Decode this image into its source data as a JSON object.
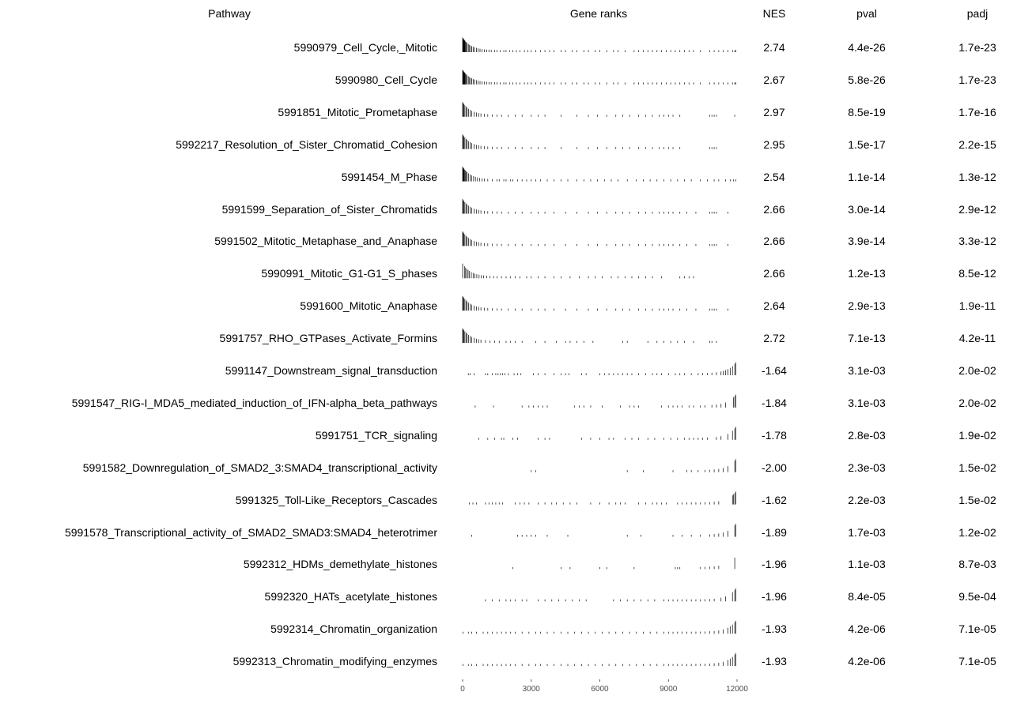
{
  "chart_data": {
    "type": "table",
    "columns": [
      "Pathway",
      "Gene ranks",
      "NES",
      "pval",
      "padj"
    ],
    "x_axis": {
      "ticks": [
        0,
        3000,
        6000,
        9000,
        12000
      ],
      "tick_labels": [
        "0",
        "3000",
        "6000",
        "9000",
        "12000"
      ],
      "range": [
        0,
        12000
      ]
    },
    "bar_color": "#000000",
    "rows": [
      {
        "pathway": "5990979_Cell_Cycle,_Mitotic",
        "nes": "2.74",
        "pval": "4.4e-26",
        "padj": "1.7e-23",
        "ranks": [
          0,
          20,
          40,
          60,
          80,
          100,
          130,
          160,
          200,
          250,
          300,
          350,
          400,
          460,
          520,
          600,
          680,
          760,
          850,
          950,
          1050,
          1150,
          1250,
          1400,
          1500,
          1650,
          1800,
          1900,
          2050,
          2200,
          2350,
          2500,
          2700,
          2850,
          3000,
          3200,
          3400,
          3600,
          3800,
          4000,
          4300,
          4500,
          4800,
          5000,
          5300,
          5500,
          5800,
          6000,
          6300,
          6600,
          6800,
          7100,
          7500,
          7700,
          7900,
          8100,
          8300,
          8500,
          8700,
          8900,
          9100,
          9300,
          9500,
          9700,
          9900,
          10100,
          10400,
          10800,
          11000,
          11200,
          11400,
          11600,
          11800,
          11900,
          11950
        ]
      },
      {
        "pathway": "5990980_Cell_Cycle",
        "nes": "2.67",
        "pval": "5.8e-26",
        "padj": "1.7e-23",
        "ranks": [
          0,
          20,
          40,
          60,
          80,
          100,
          130,
          160,
          200,
          250,
          300,
          350,
          400,
          460,
          520,
          600,
          680,
          760,
          850,
          950,
          1050,
          1150,
          1250,
          1400,
          1500,
          1650,
          1800,
          1900,
          2050,
          2200,
          2350,
          2500,
          2700,
          2850,
          3000,
          3200,
          3400,
          3600,
          3800,
          4000,
          4300,
          4500,
          4800,
          5000,
          5300,
          5500,
          5800,
          6000,
          6300,
          6600,
          6800,
          7100,
          7500,
          7700,
          7900,
          8100,
          8300,
          8500,
          8700,
          8900,
          9100,
          9300,
          9500,
          9700,
          9900,
          10100,
          10400,
          10800,
          11000,
          11200,
          11400,
          11600,
          11800,
          11900,
          11950
        ]
      },
      {
        "pathway": "5991851_Mitotic_Prometaphase",
        "nes": "2.97",
        "pval": "8.5e-19",
        "padj": "1.7e-16",
        "ranks": [
          0,
          30,
          60,
          100,
          150,
          200,
          260,
          330,
          400,
          500,
          600,
          700,
          800,
          950,
          1100,
          1300,
          1500,
          1700,
          2000,
          2300,
          2600,
          3000,
          3300,
          3600,
          4300,
          5000,
          5500,
          5900,
          6300,
          6700,
          7000,
          7300,
          7700,
          8000,
          8300,
          8600,
          8800,
          9000,
          9200,
          9500,
          10800,
          10900,
          11000,
          11100,
          11900
        ]
      },
      {
        "pathway": "5992217_Resolution_of_Sister_Chromatid_Cohesion",
        "nes": "2.95",
        "pval": "1.5e-17",
        "padj": "2.2e-15",
        "ranks": [
          0,
          30,
          60,
          100,
          150,
          200,
          260,
          330,
          400,
          500,
          600,
          700,
          800,
          950,
          1100,
          1300,
          1500,
          1700,
          2000,
          2300,
          2600,
          3000,
          3300,
          3600,
          4300,
          5000,
          5500,
          5900,
          6300,
          6700,
          7000,
          7300,
          7700,
          8000,
          8300,
          8600,
          8800,
          9000,
          9200,
          9500,
          10800,
          10900,
          11000,
          11100
        ]
      },
      {
        "pathway": "5991454_M_Phase",
        "nes": "2.54",
        "pval": "1.1e-14",
        "padj": "1.3e-12",
        "ranks": [
          0,
          20,
          40,
          60,
          90,
          120,
          160,
          200,
          260,
          330,
          400,
          480,
          560,
          650,
          750,
          850,
          950,
          1100,
          1300,
          1500,
          1600,
          1800,
          1900,
          2100,
          2200,
          2400,
          2600,
          2800,
          3000,
          3200,
          3400,
          3700,
          4000,
          4300,
          4600,
          5000,
          5300,
          5600,
          5900,
          6200,
          6500,
          6800,
          7200,
          7600,
          7900,
          8200,
          8500,
          8800,
          9100,
          9400,
          9700,
          10000,
          10400,
          10700,
          11000,
          11200,
          11500,
          11700,
          11850,
          11950
        ]
      },
      {
        "pathway": "5991599_Separation_of_Sister_Chromatids",
        "nes": "2.66",
        "pval": "3.0e-14",
        "padj": "2.9e-12",
        "ranks": [
          0,
          30,
          60,
          100,
          150,
          200,
          260,
          330,
          400,
          500,
          600,
          700,
          800,
          950,
          1100,
          1300,
          1500,
          1700,
          2000,
          2300,
          2600,
          3000,
          3300,
          3600,
          4000,
          4500,
          5000,
          5500,
          5900,
          6300,
          6700,
          7000,
          7300,
          7700,
          8000,
          8300,
          8600,
          8800,
          9000,
          9200,
          9500,
          9800,
          10200,
          10800,
          10900,
          11000,
          11100,
          11600
        ]
      },
      {
        "pathway": "5991502_Mitotic_Metaphase_and_Anaphase",
        "nes": "2.66",
        "pval": "3.9e-14",
        "padj": "3.3e-12",
        "ranks": [
          0,
          30,
          60,
          100,
          150,
          200,
          260,
          330,
          400,
          500,
          600,
          700,
          800,
          950,
          1100,
          1300,
          1500,
          1700,
          2000,
          2300,
          2600,
          3000,
          3300,
          3600,
          4000,
          4500,
          5000,
          5500,
          5900,
          6300,
          6700,
          7000,
          7300,
          7700,
          8000,
          8300,
          8600,
          8800,
          9000,
          9200,
          9500,
          9800,
          10200,
          10800,
          10900,
          11000,
          11100,
          11600
        ]
      },
      {
        "pathway": "5990991_Mitotic_G1-G1_S_phases",
        "nes": "2.66",
        "pval": "1.2e-13",
        "padj": "8.5e-12",
        "ranks": [
          0,
          80,
          130,
          180,
          240,
          300,
          380,
          460,
          540,
          620,
          720,
          820,
          920,
          1050,
          1200,
          1350,
          1500,
          1700,
          1900,
          2100,
          2300,
          2500,
          2800,
          3000,
          3300,
          3600,
          4000,
          4300,
          4700,
          5100,
          5500,
          5800,
          6100,
          6500,
          6800,
          7100,
          7400,
          7700,
          8000,
          8300,
          8700,
          9500,
          9700,
          9900,
          10100
        ]
      },
      {
        "pathway": "5991600_Mitotic_Anaphase",
        "nes": "2.64",
        "pval": "2.9e-13",
        "padj": "1.9e-11",
        "ranks": [
          0,
          30,
          60,
          100,
          150,
          200,
          260,
          330,
          400,
          500,
          600,
          700,
          800,
          950,
          1100,
          1300,
          1500,
          1700,
          2000,
          2300,
          2600,
          3000,
          3300,
          3600,
          4000,
          4500,
          5000,
          5500,
          5900,
          6300,
          6700,
          7000,
          7300,
          7700,
          8000,
          8300,
          8600,
          8800,
          9000,
          9200,
          9500,
          9800,
          10200,
          10800,
          10900,
          11000,
          11100,
          11600
        ]
      },
      {
        "pathway": "5991757_RHO_GTPases_Activate_Formins",
        "nes": "2.72",
        "pval": "7.1e-13",
        "padj": "4.2e-11",
        "ranks": [
          0,
          30,
          60,
          100,
          150,
          200,
          260,
          330,
          400,
          500,
          600,
          700,
          800,
          1000,
          1200,
          1400,
          1600,
          1900,
          2100,
          2300,
          2600,
          3200,
          3600,
          4100,
          4500,
          4700,
          5000,
          5300,
          5700,
          7000,
          7200,
          8100,
          8500,
          8800,
          9100,
          9400,
          9700,
          10100,
          10800,
          10900,
          11100
        ]
      },
      {
        "pathway": "5991147_Downstream_signal_transduction",
        "nes": "-1.64",
        "pval": "3.1e-03",
        "padj": "2.0e-02",
        "ranks": [
          250,
          320,
          500,
          1000,
          1100,
          1300,
          1450,
          1550,
          1650,
          1750,
          1850,
          2000,
          2250,
          2400,
          2550,
          3100,
          3300,
          3600,
          4000,
          4300,
          4500,
          4650,
          5200,
          5400,
          6000,
          6200,
          6400,
          6600,
          6800,
          7000,
          7200,
          7400,
          7700,
          8000,
          8300,
          8500,
          8700,
          9000,
          9300,
          9500,
          9700,
          10000,
          10300,
          10500,
          10700,
          10900,
          11100,
          11300,
          11400,
          11500,
          11600,
          11700,
          11800,
          11900,
          11950
        ]
      },
      {
        "pathway": "5991547_RIG-I_MDA5_mediated_induction_of_IFN-alpha_beta_pathways",
        "nes": "-1.84",
        "pval": "3.1e-03",
        "padj": "2.0e-02",
        "ranks": [
          550,
          1350,
          2600,
          2900,
          3100,
          3300,
          3500,
          3700,
          4900,
          5100,
          5300,
          5600,
          6100,
          6900,
          7300,
          7500,
          7700,
          8700,
          9000,
          9200,
          9400,
          9600,
          9900,
          10100,
          10400,
          10600,
          10900,
          11100,
          11300,
          11500,
          11850,
          11900,
          11950
        ]
      },
      {
        "pathway": "5991751_TCR_signaling",
        "nes": "-1.78",
        "pval": "2.8e-03",
        "padj": "1.9e-02",
        "ranks": [
          700,
          1100,
          1400,
          1700,
          1800,
          2200,
          2400,
          3300,
          3600,
          3800,
          5200,
          5600,
          6000,
          6400,
          6600,
          7100,
          7400,
          7700,
          8100,
          8400,
          8800,
          9100,
          9400,
          9700,
          9900,
          10100,
          10300,
          10500,
          10700,
          11100,
          11300,
          11600,
          11800,
          11900,
          11950
        ]
      },
      {
        "pathway": "5991582_Downregulation_of_SMAD2_3:SMAD4_transcriptional_activity",
        "nes": "-2.00",
        "pval": "2.3e-03",
        "padj": "1.5e-02",
        "ranks": [
          3000,
          3200,
          7200,
          7900,
          9200,
          9800,
          10000,
          10300,
          10600,
          10800,
          11000,
          11200,
          11400,
          11600,
          11900,
          11950
        ]
      },
      {
        "pathway": "5991325_Toll-Like_Receptors_Cascades",
        "nes": "-1.62",
        "pval": "2.2e-03",
        "padj": "1.5e-02",
        "ranks": [
          300,
          450,
          600,
          1000,
          1150,
          1300,
          1450,
          1600,
          1750,
          2300,
          2500,
          2700,
          2900,
          3300,
          3600,
          3900,
          4100,
          4400,
          4700,
          5000,
          5600,
          6000,
          6400,
          6700,
          6900,
          7100,
          7700,
          8000,
          8300,
          8500,
          8700,
          8900,
          9400,
          9600,
          9800,
          10000,
          10200,
          10400,
          10600,
          10800,
          11000,
          11200,
          11800,
          11850,
          11900,
          11950
        ]
      },
      {
        "pathway": "5991578_Transcriptional_activity_of_SMAD2_SMAD3:SMAD4_heterotrimer",
        "nes": "-1.89",
        "pval": "1.7e-03",
        "padj": "1.2e-02",
        "ranks": [
          400,
          2400,
          2600,
          2800,
          3000,
          3200,
          3700,
          4600,
          7200,
          7800,
          9200,
          9600,
          10000,
          10400,
          10800,
          11000,
          11200,
          11400,
          11600,
          11900,
          11950
        ]
      },
      {
        "pathway": "5992312_HDMs_demethylate_histones",
        "nes": "-1.96",
        "pval": "1.1e-03",
        "padj": "8.7e-03",
        "ranks": [
          2200,
          4300,
          4700,
          6000,
          6300,
          7500,
          9300,
          9400,
          9500,
          10400,
          10600,
          10800,
          11000,
          11200,
          11900
        ]
      },
      {
        "pathway": "5992320_HATs_acetylate_histones",
        "nes": "-1.96",
        "pval": "8.4e-05",
        "padj": "9.5e-04",
        "ranks": [
          1000,
          1300,
          1600,
          1900,
          2100,
          2300,
          2600,
          2800,
          3300,
          3600,
          3900,
          4200,
          4500,
          4800,
          5100,
          5400,
          6600,
          6900,
          7200,
          7500,
          7800,
          8100,
          8400,
          8800,
          9000,
          9200,
          9400,
          9600,
          9800,
          10000,
          10200,
          10400,
          10600,
          10800,
          11000,
          11300,
          11500,
          11800,
          11900,
          11950
        ]
      },
      {
        "pathway": "5992314_Chromatin_organization",
        "nes": "-1.93",
        "pval": "4.2e-06",
        "padj": "7.1e-05",
        "ranks": [
          20,
          250,
          400,
          600,
          900,
          1100,
          1300,
          1500,
          1700,
          1900,
          2100,
          2300,
          2600,
          2900,
          3200,
          3400,
          3700,
          4000,
          4300,
          4600,
          4900,
          5200,
          5500,
          5800,
          6100,
          6400,
          6700,
          7000,
          7300,
          7600,
          7900,
          8200,
          8500,
          8800,
          9000,
          9200,
          9400,
          9600,
          9800,
          10000,
          10200,
          10400,
          10600,
          10800,
          11000,
          11200,
          11400,
          11600,
          11700,
          11800,
          11900,
          11950
        ]
      },
      {
        "pathway": "5992313_Chromatin_modifying_enzymes",
        "nes": "-1.93",
        "pval": "4.2e-06",
        "padj": "7.1e-05",
        "ranks": [
          20,
          250,
          400,
          600,
          900,
          1100,
          1300,
          1500,
          1700,
          1900,
          2100,
          2300,
          2600,
          2900,
          3200,
          3400,
          3700,
          4000,
          4300,
          4600,
          4900,
          5200,
          5500,
          5800,
          6100,
          6400,
          6700,
          7000,
          7300,
          7600,
          7900,
          8200,
          8500,
          8800,
          9000,
          9200,
          9400,
          9600,
          9800,
          10000,
          10200,
          10400,
          10600,
          10800,
          11000,
          11200,
          11400,
          11600,
          11700,
          11800,
          11900,
          11950
        ]
      }
    ]
  }
}
